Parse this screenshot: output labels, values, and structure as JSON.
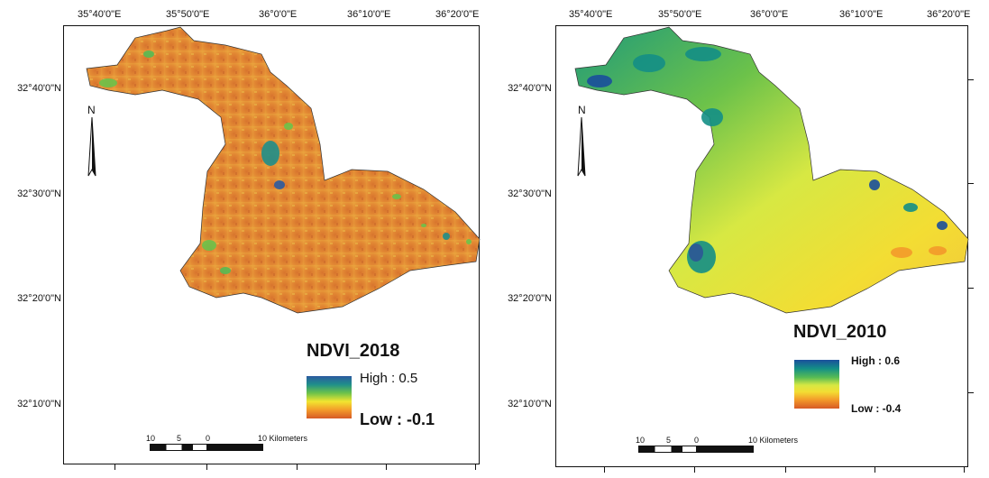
{
  "maps": [
    {
      "title": "NDVI_2018",
      "legend": {
        "high": "High : 0.5",
        "low": "Low : -0.1"
      },
      "scale": {
        "labels": [
          "10",
          "5",
          "0",
          "10 Kilometers"
        ]
      },
      "lon_labels": [
        "35°40'0\"E",
        "35°50'0\"E",
        "36°0'0\"E",
        "36°10'0\"E",
        "36°20'0\"E"
      ],
      "lat_labels": [
        "32°40'0\"N",
        "32°30'0\"N",
        "32°20'0\"N",
        "32°10'0\"N"
      ],
      "north": "N",
      "colors": {
        "ramp": [
          "#2c5aa0",
          "#1f8f8a",
          "#6cc24a",
          "#f2e530",
          "#f39a2a",
          "#d65a26"
        ],
        "dominant": "#e08a3a"
      }
    },
    {
      "title": "NDVI_2010",
      "legend": {
        "high": "High : 0.6",
        "low": "Low : -0.4"
      },
      "scale": {
        "labels": [
          "10",
          "5",
          "0",
          "10 Kilometers"
        ]
      },
      "lon_labels": [
        "35°40'0\"E",
        "35°50'0\"E",
        "36°0'0\"E",
        "36°10'0\"E",
        "36°20'0\"E"
      ],
      "lat_labels": [
        "32°40'0\"N",
        "32°30'0\"N",
        "32°20'0\"N",
        "32°10'0\"N"
      ],
      "north": "N",
      "colors": {
        "ramp": [
          "#1a4f9c",
          "#148f86",
          "#57bb54",
          "#d7e843",
          "#f3dd33",
          "#f39a2a",
          "#d65a26"
        ],
        "dominant": "#c6d94a"
      }
    }
  ]
}
